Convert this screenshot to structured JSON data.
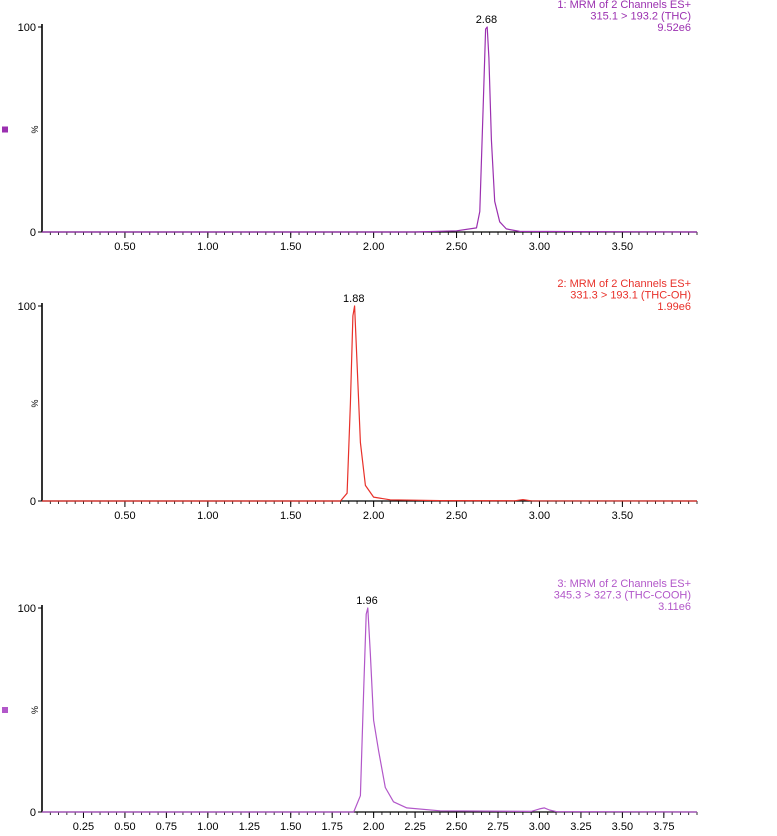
{
  "chart_data": [
    {
      "type": "line",
      "color": "#9b30b0",
      "marker": true,
      "xlim": [
        0,
        3.95
      ],
      "ylim": [
        0,
        100
      ],
      "x_ticks": [
        "0.50",
        "1.00",
        "1.50",
        "2.00",
        "2.50",
        "3.00",
        "3.50"
      ],
      "y_ticks": [
        "0",
        "100"
      ],
      "ylabel": "%",
      "legend": [
        "1: MRM of 2 Channels ES+",
        "315.1 > 193.2 (THC)",
        "9.52e6"
      ],
      "peak_label": {
        "text": "2.68",
        "x": 2.68
      },
      "x": [
        0,
        2.25,
        2.5,
        2.62,
        2.64,
        2.66,
        2.675,
        2.685,
        2.695,
        2.71,
        2.73,
        2.76,
        2.8,
        2.88,
        3.95
      ],
      "y": [
        0,
        0,
        0.6,
        2,
        10,
        60,
        99,
        100,
        85,
        45,
        15,
        5,
        1.5,
        0.3,
        0
      ]
    },
    {
      "type": "line",
      "color": "#e8312a",
      "marker": false,
      "xlim": [
        0,
        3.95
      ],
      "ylim": [
        0,
        100
      ],
      "x_ticks": [
        "0.50",
        "1.00",
        "1.50",
        "2.00",
        "2.50",
        "3.00",
        "3.50"
      ],
      "y_ticks": [
        "0",
        "100"
      ],
      "ylabel": "%",
      "legend": [
        "2: MRM of 2 Channels ES+",
        "331.3 > 193.1 (THC-OH)",
        "1.99e6"
      ],
      "peak_label": {
        "text": "1.88",
        "x": 1.88
      },
      "x": [
        0,
        1.8,
        1.84,
        1.86,
        1.875,
        1.885,
        1.9,
        1.92,
        1.95,
        2.0,
        2.1,
        2.4,
        2.85,
        2.9,
        2.95,
        3.95
      ],
      "y": [
        0,
        0,
        4,
        50,
        95,
        100,
        70,
        30,
        8,
        2,
        0.6,
        0.2,
        0.1,
        0.7,
        0.1,
        0
      ]
    },
    {
      "type": "line",
      "color": "#b257c9",
      "marker": true,
      "xlim": [
        0,
        3.95
      ],
      "ylim": [
        0,
        100
      ],
      "x_ticks": [
        "0.25",
        "0.50",
        "0.75",
        "1.00",
        "1.25",
        "1.50",
        "1.75",
        "2.00",
        "2.25",
        "2.50",
        "2.75",
        "3.00",
        "3.25",
        "3.50",
        "3.75"
      ],
      "y_ticks": [
        "0",
        "100"
      ],
      "ylabel": "%",
      "legend": [
        "3: MRM of 2 Channels ES+",
        "345.3 > 327.3 (THC-COOH)",
        "3.11e6"
      ],
      "peak_label": {
        "text": "1.96",
        "x": 1.96
      },
      "x": [
        0,
        1.88,
        1.92,
        1.94,
        1.955,
        1.965,
        1.98,
        2.0,
        2.03,
        2.07,
        2.12,
        2.2,
        2.4,
        2.95,
        3.0,
        3.03,
        3.06,
        3.1,
        3.95
      ],
      "y": [
        0,
        0,
        8,
        60,
        97,
        100,
        78,
        45,
        30,
        12,
        5,
        2,
        0.6,
        0.3,
        1.5,
        2,
        1,
        0.2,
        0
      ]
    }
  ]
}
